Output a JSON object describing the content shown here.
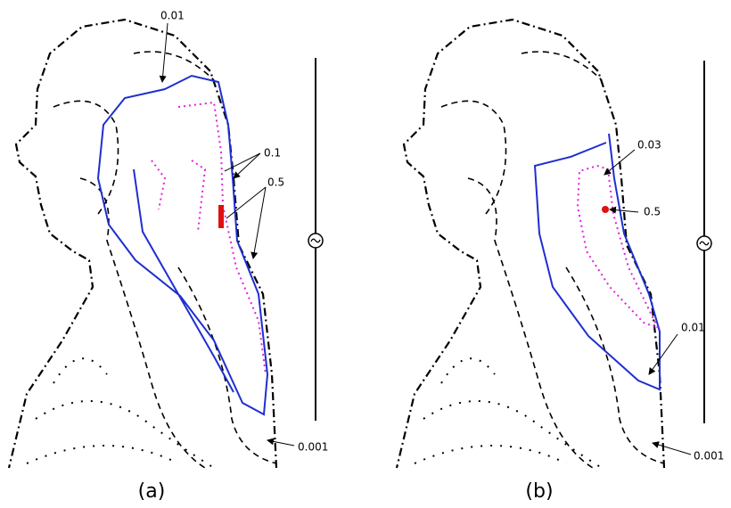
{
  "panels": [
    {
      "caption": "(a)",
      "labels": [
        "0.01",
        "0.1",
        "0.5",
        "0.001"
      ]
    },
    {
      "caption": "(b)",
      "labels": [
        "0.03",
        "0.5",
        "0.01",
        "0.001"
      ]
    }
  ]
}
